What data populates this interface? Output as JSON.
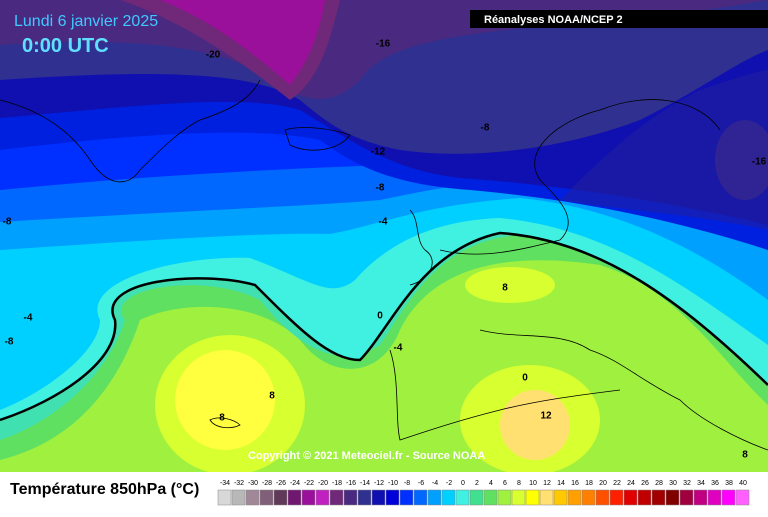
{
  "header": {
    "title": "Lundi 6 janvier 2025",
    "time": "0:00 UTC",
    "source": "Réanalyses NOAA/NCEP 2"
  },
  "map": {
    "contour_labels": [
      -20,
      -16,
      -8,
      -12,
      -8,
      -4,
      -16,
      -8,
      -4,
      -8,
      0,
      -4,
      8,
      0,
      12,
      8,
      8,
      8
    ]
  },
  "copyright": "Copyright © 2021 Meteociel.fr - Source NOAA",
  "legend": {
    "title": "Température 850hPa (°C)",
    "scale": [
      {
        "label": -34,
        "color": "#d8d8d8"
      },
      {
        "label": -32,
        "color": "#b8b8b8"
      },
      {
        "label": -30,
        "color": "#a08898"
      },
      {
        "label": -28,
        "color": "#806078"
      },
      {
        "label": -26,
        "color": "#603858"
      },
      {
        "label": -24,
        "color": "#701870"
      },
      {
        "label": -22,
        "color": "#9a109a"
      },
      {
        "label": -20,
        "color": "#c020c0"
      },
      {
        "label": -18,
        "color": "#702878"
      },
      {
        "label": -16,
        "color": "#4a2a80"
      },
      {
        "label": -14,
        "color": "#303090"
      },
      {
        "label": -12,
        "color": "#1010b0"
      },
      {
        "label": -10,
        "color": "#0000d8"
      },
      {
        "label": -8,
        "color": "#0030ff"
      },
      {
        "label": -6,
        "color": "#0068ff"
      },
      {
        "label": -4,
        "color": "#00a0ff"
      },
      {
        "label": -2,
        "color": "#00d0ff"
      },
      {
        "label": 0,
        "color": "#40f0e0"
      },
      {
        "label": 2,
        "color": "#40e090"
      },
      {
        "label": 4,
        "color": "#60e060"
      },
      {
        "label": 6,
        "color": "#a0f040"
      },
      {
        "label": 8,
        "color": "#d8ff30"
      },
      {
        "label": 10,
        "color": "#ffff00"
      },
      {
        "label": 12,
        "color": "#ffe070"
      },
      {
        "label": 14,
        "color": "#ffc800"
      },
      {
        "label": 16,
        "color": "#ffa000"
      },
      {
        "label": 18,
        "color": "#ff8000"
      },
      {
        "label": 20,
        "color": "#ff5000"
      },
      {
        "label": 22,
        "color": "#ff2000"
      },
      {
        "label": 24,
        "color": "#e00000"
      },
      {
        "label": 26,
        "color": "#c00000"
      },
      {
        "label": 28,
        "color": "#a00000"
      },
      {
        "label": 30,
        "color": "#800000"
      },
      {
        "label": 32,
        "color": "#a00040"
      },
      {
        "label": 34,
        "color": "#c00080"
      },
      {
        "label": 36,
        "color": "#e000c0"
      },
      {
        "label": 38,
        "color": "#ff00ff"
      },
      {
        "label": 40,
        "color": "#ff60ff"
      }
    ]
  }
}
